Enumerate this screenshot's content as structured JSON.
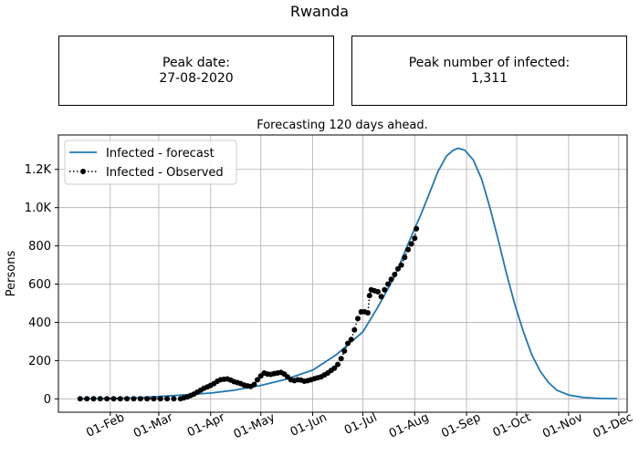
{
  "page": {
    "title": "Rwanda",
    "peak_date_label": "Peak date:",
    "peak_date_value": "27-08-2020",
    "peak_infected_label": "Peak number of infected:",
    "peak_infected_value": "1,311"
  },
  "colors": {
    "forecast": "#1f77b4",
    "observed": "#000000",
    "grid": "#b0b0b0"
  },
  "chart_data": {
    "type": "line",
    "title": "Forecasting 120 days ahead.",
    "xlabel": "",
    "ylabel": "Persons",
    "grid": true,
    "legend_position": "top-left",
    "x_axis": {
      "type": "date",
      "range": [
        "2020-01-01",
        "2020-12-06"
      ],
      "tick_dates": [
        "2020-02-01",
        "2020-03-01",
        "2020-04-01",
        "2020-05-01",
        "2020-06-01",
        "2020-07-01",
        "2020-08-01",
        "2020-09-01",
        "2020-10-01",
        "2020-11-01",
        "2020-12-01"
      ],
      "tick_labels": [
        "01-Feb",
        "01-Mar",
        "01-Apr",
        "01-May",
        "01-Jun",
        "01-Jul",
        "01-Aug",
        "01-Sep",
        "01-Oct",
        "01-Nov",
        "01-Dec"
      ]
    },
    "y_axis": {
      "range": [
        -70,
        1380
      ],
      "tick_values": [
        0,
        200,
        400,
        600,
        800,
        1000,
        1200
      ],
      "tick_labels": [
        "0",
        "200",
        "400",
        "600",
        "800",
        "1.0K",
        "1.2K"
      ]
    },
    "series": [
      {
        "name": "Infected - forecast",
        "style": "solid line",
        "points": [
          [
            "2020-01-14",
            0
          ],
          [
            "2020-02-01",
            2
          ],
          [
            "2020-02-15",
            5
          ],
          [
            "2020-03-01",
            12
          ],
          [
            "2020-03-15",
            20
          ],
          [
            "2020-04-01",
            30
          ],
          [
            "2020-04-15",
            45
          ],
          [
            "2020-05-01",
            70
          ],
          [
            "2020-05-15",
            100
          ],
          [
            "2020-06-01",
            150
          ],
          [
            "2020-06-15",
            230
          ],
          [
            "2020-07-01",
            350
          ],
          [
            "2020-07-10",
            480
          ],
          [
            "2020-07-20",
            640
          ],
          [
            "2020-07-30",
            850
          ],
          [
            "2020-08-05",
            970
          ],
          [
            "2020-08-10",
            1080
          ],
          [
            "2020-08-15",
            1190
          ],
          [
            "2020-08-20",
            1270
          ],
          [
            "2020-08-24",
            1300
          ],
          [
            "2020-08-27",
            1311
          ],
          [
            "2020-08-31",
            1300
          ],
          [
            "2020-09-05",
            1250
          ],
          [
            "2020-09-10",
            1150
          ],
          [
            "2020-09-15",
            1000
          ],
          [
            "2020-09-20",
            830
          ],
          [
            "2020-09-25",
            650
          ],
          [
            "2020-09-30",
            490
          ],
          [
            "2020-10-05",
            350
          ],
          [
            "2020-10-10",
            230
          ],
          [
            "2020-10-15",
            145
          ],
          [
            "2020-10-20",
            85
          ],
          [
            "2020-10-25",
            45
          ],
          [
            "2020-11-01",
            20
          ],
          [
            "2020-11-10",
            7
          ],
          [
            "2020-11-20",
            2
          ],
          [
            "2020-11-30",
            1
          ]
        ]
      },
      {
        "name": "Infected - Observed",
        "style": "dotted line with markers",
        "points": [
          [
            "2020-01-14",
            0
          ],
          [
            "2020-01-18",
            0
          ],
          [
            "2020-01-22",
            0
          ],
          [
            "2020-01-26",
            0
          ],
          [
            "2020-01-30",
            0
          ],
          [
            "2020-02-03",
            0
          ],
          [
            "2020-02-07",
            0
          ],
          [
            "2020-02-11",
            0
          ],
          [
            "2020-02-15",
            0
          ],
          [
            "2020-02-19",
            0
          ],
          [
            "2020-02-23",
            0
          ],
          [
            "2020-02-27",
            0
          ],
          [
            "2020-03-02",
            0
          ],
          [
            "2020-03-06",
            0
          ],
          [
            "2020-03-10",
            0
          ],
          [
            "2020-03-14",
            0
          ],
          [
            "2020-03-16",
            5
          ],
          [
            "2020-03-18",
            10
          ],
          [
            "2020-03-20",
            18
          ],
          [
            "2020-03-22",
            25
          ],
          [
            "2020-03-24",
            35
          ],
          [
            "2020-03-26",
            45
          ],
          [
            "2020-03-28",
            55
          ],
          [
            "2020-03-30",
            62
          ],
          [
            "2020-04-01",
            70
          ],
          [
            "2020-04-03",
            80
          ],
          [
            "2020-04-05",
            92
          ],
          [
            "2020-04-07",
            100
          ],
          [
            "2020-04-09",
            102
          ],
          [
            "2020-04-11",
            104
          ],
          [
            "2020-04-13",
            98
          ],
          [
            "2020-04-15",
            90
          ],
          [
            "2020-04-17",
            85
          ],
          [
            "2020-04-19",
            80
          ],
          [
            "2020-04-21",
            72
          ],
          [
            "2020-04-23",
            68
          ],
          [
            "2020-04-25",
            65
          ],
          [
            "2020-04-27",
            75
          ],
          [
            "2020-04-29",
            100
          ],
          [
            "2020-05-01",
            120
          ],
          [
            "2020-05-03",
            135
          ],
          [
            "2020-05-05",
            130
          ],
          [
            "2020-05-07",
            128
          ],
          [
            "2020-05-09",
            132
          ],
          [
            "2020-05-11",
            135
          ],
          [
            "2020-05-13",
            138
          ],
          [
            "2020-05-15",
            130
          ],
          [
            "2020-05-17",
            115
          ],
          [
            "2020-05-19",
            100
          ],
          [
            "2020-05-21",
            95
          ],
          [
            "2020-05-23",
            100
          ],
          [
            "2020-05-25",
            98
          ],
          [
            "2020-05-27",
            92
          ],
          [
            "2020-05-29",
            95
          ],
          [
            "2020-05-31",
            100
          ],
          [
            "2020-06-02",
            105
          ],
          [
            "2020-06-04",
            110
          ],
          [
            "2020-06-06",
            115
          ],
          [
            "2020-06-08",
            125
          ],
          [
            "2020-06-10",
            135
          ],
          [
            "2020-06-12",
            148
          ],
          [
            "2020-06-14",
            160
          ],
          [
            "2020-06-16",
            180
          ],
          [
            "2020-06-18",
            210
          ],
          [
            "2020-06-20",
            250
          ],
          [
            "2020-06-22",
            290
          ],
          [
            "2020-06-24",
            310
          ],
          [
            "2020-06-26",
            360
          ],
          [
            "2020-06-28",
            420
          ],
          [
            "2020-06-30",
            455
          ],
          [
            "2020-07-02",
            455
          ],
          [
            "2020-07-04",
            450
          ],
          [
            "2020-07-05",
            540
          ],
          [
            "2020-07-06",
            570
          ],
          [
            "2020-07-08",
            565
          ],
          [
            "2020-07-10",
            560
          ],
          [
            "2020-07-12",
            535
          ],
          [
            "2020-07-14",
            570
          ],
          [
            "2020-07-16",
            600
          ],
          [
            "2020-07-18",
            625
          ],
          [
            "2020-07-20",
            650
          ],
          [
            "2020-07-22",
            680
          ],
          [
            "2020-07-24",
            700
          ],
          [
            "2020-07-26",
            740
          ],
          [
            "2020-07-28",
            780
          ],
          [
            "2020-07-30",
            810
          ],
          [
            "2020-08-01",
            840
          ],
          [
            "2020-08-02",
            890
          ]
        ]
      }
    ]
  }
}
